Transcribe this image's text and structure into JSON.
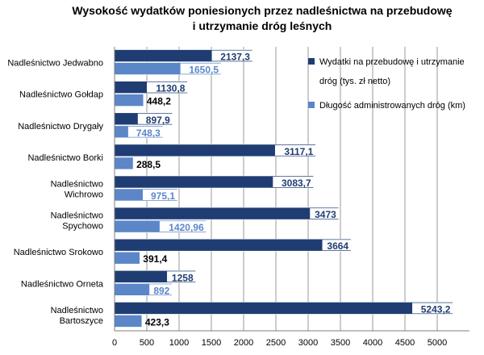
{
  "chart_data": {
    "type": "bar",
    "orientation": "horizontal",
    "title": "Wysokość wydatków poniesionych przez nadleśnictwa na przebudowę i utrzymanie dróg leśnych",
    "title_lines": [
      "Wysokość wydatków poniesionych przez nadleśnictwa na przebudowę",
      "i utrzymanie dróg leśnych"
    ],
    "categories": [
      "Nadleśnictwo Jedwabno",
      "Nadleśnictwo Gołdap",
      "Nadleśnictwo Drygały",
      "Nadleśnictwo Borki",
      "Nadleśnictwo Wichrowo",
      "Nadleśnictwo Spychowo",
      "Nadleśnictwo Srokowo",
      "Nadleśnictwo Orneta",
      "Nadleśnictwo Bartoszyce"
    ],
    "category_lines": [
      [
        "Nadleśnictwo Jedwabno"
      ],
      [
        "Nadleśnictwo Gołdap"
      ],
      [
        "Nadleśnictwo Drygały"
      ],
      [
        "Nadleśnictwo Borki"
      ],
      [
        "Nadleśnictwo",
        "Wichrowo"
      ],
      [
        "Nadleśnictwo",
        "Spychowo"
      ],
      [
        "Nadleśnictwo Srokowo"
      ],
      [
        "Nadleśnictwo Orneta"
      ],
      [
        "Nadleśnictwo",
        "Bartoszyce"
      ]
    ],
    "series": [
      {
        "name": "Wydatki na przebudowę i utrzymanie dróg (tys. zł netto)",
        "legend_lines": [
          "Wydatki na przebudowę  i utrzymanie",
          "dróg  (tys. zł netto)"
        ],
        "color": "#1f3d73",
        "values": [
          2137.3,
          1130.8,
          897.9,
          3117.1,
          3083.7,
          3473,
          3664,
          1258,
          5243.2
        ],
        "labels": [
          "2137,3",
          "1130,8",
          "897,9",
          "3117,1",
          "3083,7",
          "3473",
          "3664",
          "1258",
          "5243,2"
        ]
      },
      {
        "name": "Długość administrowanych dróg (km)",
        "legend_lines": [
          "Długość  administrowanych  dróg  (km)"
        ],
        "color": "#5b86c8",
        "values": [
          1650.5,
          448.2,
          748.3,
          288.5,
          975.1,
          1420.96,
          391.4,
          892,
          423.3
        ],
        "labels": [
          "1650,5",
          "448,2",
          "748,3",
          "288,5",
          "975,1",
          "1420,96",
          "391,4",
          "892",
          "423,3"
        ]
      }
    ],
    "xlim": [
      0,
      5500
    ],
    "xticks": [
      0,
      500,
      1000,
      1500,
      2000,
      2500,
      3000,
      3500,
      4000,
      4500,
      5000
    ],
    "xtick_labels": [
      "0",
      "500",
      "1000",
      "1500",
      "2000",
      "2500",
      "3000",
      "3500",
      "4000",
      "4500",
      "5000"
    ],
    "grid": "vertical",
    "legend": "right",
    "xlabel": "",
    "ylabel": ""
  }
}
